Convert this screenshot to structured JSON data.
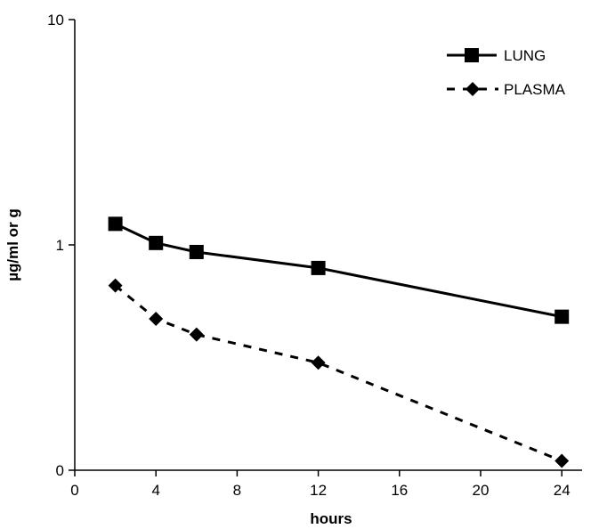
{
  "chart_data": {
    "type": "line",
    "title": "",
    "xlabel": "hours",
    "ylabel": "µg/ml or g",
    "xlim": [
      0,
      25
    ],
    "ylim": [
      0.1,
      10
    ],
    "y_scale": "log",
    "x_ticks": [
      0,
      4,
      8,
      12,
      16,
      20,
      24
    ],
    "y_ticks": [
      0.1,
      1,
      10
    ],
    "y_tick_labels": [
      "0",
      "1",
      "10"
    ],
    "grid": false,
    "legend_position": "top-right",
    "series": [
      {
        "name": "LUNG",
        "marker": "square",
        "line_style": "solid",
        "color": "#000000",
        "x": [
          2,
          4,
          6,
          12,
          24
        ],
        "y": [
          1.24,
          1.02,
          0.93,
          0.79,
          0.48
        ]
      },
      {
        "name": "PLASMA",
        "marker": "diamond",
        "line_style": "dashed",
        "color": "#000000",
        "x": [
          2,
          4,
          6,
          12,
          24
        ],
        "y": [
          0.66,
          0.47,
          0.4,
          0.3,
          0.11
        ]
      }
    ]
  }
}
